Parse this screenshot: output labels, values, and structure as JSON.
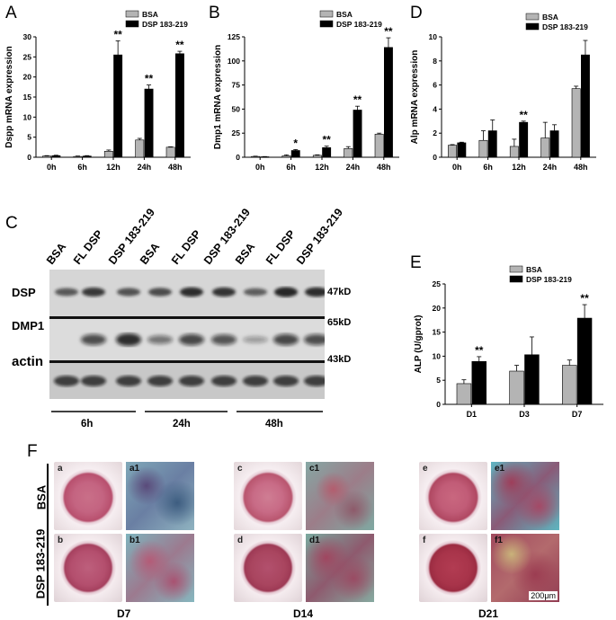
{
  "panels": {
    "A": "A",
    "B": "B",
    "C": "C",
    "D": "D",
    "E": "E",
    "F": "F"
  },
  "legend": {
    "bsa": "BSA",
    "dsp": "DSP 183-219"
  },
  "colors": {
    "bsa": "#b4b4b4",
    "dsp": "#000000"
  },
  "chart_data": [
    {
      "id": "A",
      "type": "bar",
      "ylabel": "Dspp mRNA expression",
      "ylim": [
        0,
        30
      ],
      "yticks": [
        0,
        5,
        10,
        15,
        20,
        25,
        30
      ],
      "categories": [
        "0h",
        "6h",
        "12h",
        "24h",
        "48h"
      ],
      "series": [
        {
          "name": "BSA",
          "values": [
            0.3,
            0.2,
            1.5,
            4.3,
            2.5
          ],
          "errors": [
            0.1,
            0.1,
            0.3,
            0.4,
            0.1
          ]
        },
        {
          "name": "DSP 183-219",
          "values": [
            0.4,
            0.3,
            25.5,
            17.0,
            25.8
          ],
          "errors": [
            0.1,
            0.1,
            3.5,
            1.0,
            0.6
          ]
        }
      ],
      "annotations": [
        "",
        "",
        "**",
        "**",
        "**"
      ]
    },
    {
      "id": "B",
      "type": "bar",
      "ylabel": "Dmp1 mRNA expression",
      "ylim": [
        0,
        125
      ],
      "yticks": [
        0,
        25,
        50,
        75,
        100,
        125
      ],
      "categories": [
        "0h",
        "6h",
        "12h",
        "24h",
        "48h"
      ],
      "series": [
        {
          "name": "BSA",
          "values": [
            0.8,
            1.5,
            2.0,
            9.0,
            24.0
          ],
          "errors": [
            0.3,
            1.0,
            0.5,
            2.0,
            1.0
          ]
        },
        {
          "name": "DSP 183-219",
          "values": [
            0.5,
            7.0,
            10.0,
            49.0,
            114.0
          ],
          "errors": [
            0.2,
            1.0,
            1.5,
            4.0,
            10.0
          ]
        }
      ],
      "annotations": [
        "",
        "*",
        "**",
        "**",
        "**"
      ]
    },
    {
      "id": "D",
      "type": "bar",
      "ylabel": "Alp mRNA expression",
      "ylim": [
        0,
        10
      ],
      "yticks": [
        0,
        2,
        4,
        6,
        8,
        10
      ],
      "categories": [
        "0h",
        "6h",
        "12h",
        "24h",
        "48h"
      ],
      "series": [
        {
          "name": "BSA",
          "values": [
            1.0,
            1.4,
            0.9,
            1.6,
            5.7
          ],
          "errors": [
            0.05,
            0.8,
            0.6,
            1.3,
            0.2
          ]
        },
        {
          "name": "DSP 183-219",
          "values": [
            1.2,
            2.2,
            2.9,
            2.2,
            8.5
          ],
          "errors": [
            0.05,
            0.9,
            0.1,
            0.5,
            1.2
          ]
        }
      ],
      "annotations": [
        "",
        "",
        "**",
        "",
        ""
      ]
    },
    {
      "id": "E",
      "type": "bar",
      "ylabel": "ALP (U/gprot)",
      "ylim": [
        0,
        25
      ],
      "yticks": [
        0,
        5,
        10,
        15,
        20,
        25
      ],
      "categories": [
        "D1",
        "D3",
        "D7"
      ],
      "series": [
        {
          "name": "BSA",
          "values": [
            4.3,
            6.9,
            8.1
          ],
          "errors": [
            0.8,
            1.2,
            1.1
          ]
        },
        {
          "name": "DSP 183-219",
          "values": [
            8.9,
            10.3,
            17.9
          ],
          "errors": [
            1.0,
            3.7,
            2.8
          ]
        }
      ],
      "annotations": [
        "**",
        "",
        "**"
      ]
    }
  ],
  "blot": {
    "lanes": [
      "BSA",
      "FL DSP",
      "DSP 183-219",
      "BSA",
      "FL DSP",
      "DSP 183-219",
      "BSA",
      "FL DSP",
      "DSP 183-219"
    ],
    "rows": [
      {
        "label": "DSP",
        "kd": "47kD"
      },
      {
        "label": "DMP1",
        "kd": "65kD"
      },
      {
        "label": "actin",
        "kd": "43kD"
      }
    ],
    "timepoints": [
      "6h",
      "24h",
      "48h"
    ]
  },
  "staining": {
    "rows": [
      "BSA",
      "DSP 183-219"
    ],
    "days": [
      "D7",
      "D14",
      "D21"
    ],
    "panels_top": [
      "a",
      "a1",
      "c",
      "c1",
      "e",
      "e1"
    ],
    "panels_bottom": [
      "b",
      "b1",
      "d",
      "d1",
      "f",
      "f1"
    ],
    "scale_bar": "200μm"
  }
}
